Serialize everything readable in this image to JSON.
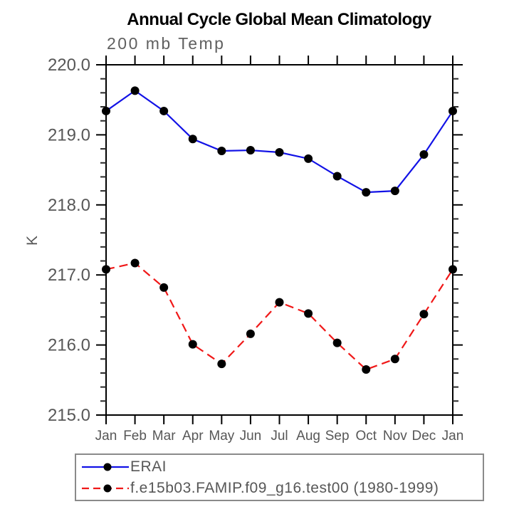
{
  "title": "Annual Cycle Global Mean Climatology",
  "subtitle": "200 mb Temp",
  "colors": {
    "erai_line": "#1212e6",
    "model_line": "#f01818",
    "marker": "#000000",
    "axis": "#000000",
    "label_text": "#575757",
    "legend_border": "#8a8a8a"
  },
  "chart_data": {
    "type": "line",
    "title": "Annual Cycle Global Mean Climatology",
    "subtitle": "200 mb Temp",
    "xlabel": "",
    "ylabel": "K",
    "categories": [
      "Jan",
      "Feb",
      "Mar",
      "Apr",
      "May",
      "Jun",
      "Jul",
      "Aug",
      "Sep",
      "Oct",
      "Nov",
      "Dec",
      "Jan"
    ],
    "ylim": [
      215.0,
      220.0
    ],
    "y_major_step": 1.0,
    "y_minor_step": 0.2,
    "y_tick_labels": [
      "215.0",
      "216.0",
      "217.0",
      "218.0",
      "219.0",
      "220.0"
    ],
    "grid": false,
    "legend_position": "bottom-left",
    "series": [
      {
        "name": "ERAI",
        "color": "#1212e6",
        "style": "solid",
        "marker": "circle",
        "values": [
          219.34,
          219.63,
          219.34,
          218.94,
          218.77,
          218.78,
          218.75,
          218.66,
          218.41,
          218.18,
          218.2,
          218.72,
          219.34
        ]
      },
      {
        "name": "f.e15b03.FAMIP.f09_g16.test00 (1980-1999)",
        "color": "#f01818",
        "style": "dashed",
        "marker": "circle",
        "values": [
          217.08,
          217.17,
          216.82,
          216.01,
          215.73,
          216.16,
          216.61,
          216.45,
          216.03,
          215.65,
          215.8,
          216.44,
          217.08
        ]
      }
    ]
  }
}
